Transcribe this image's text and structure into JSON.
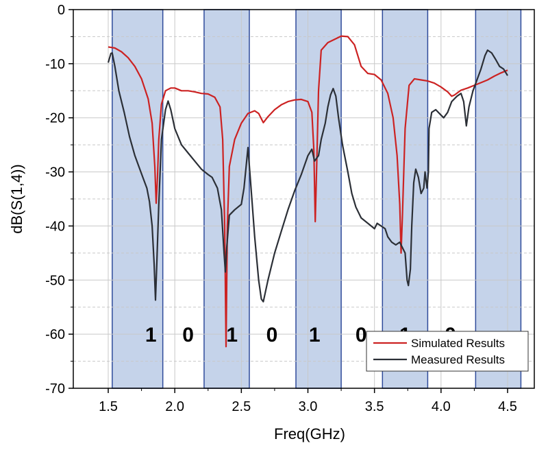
{
  "chart_data": {
    "type": "line",
    "xlabel": "Freq(GHz)",
    "ylabel": "dB(S(1,4))",
    "xlim": [
      1.5,
      4.5
    ],
    "ylim": [
      -70,
      0
    ],
    "x_ticks": [
      "1.5",
      "2.0",
      "2.5",
      "3.0",
      "3.5",
      "4.0",
      "4.5"
    ],
    "y_ticks": [
      "0",
      "-10",
      "-20",
      "-30",
      "-40",
      "-50",
      "-60",
      "-70"
    ],
    "grid": true,
    "legend_position": "bottom-right",
    "highlight_bands": [
      [
        1.53,
        1.91
      ],
      [
        2.22,
        2.56
      ],
      [
        2.91,
        3.25
      ],
      [
        3.56,
        3.9
      ],
      [
        4.26,
        4.6
      ]
    ],
    "bit_labels": [
      {
        "text": "1",
        "x": 1.82,
        "y": -60
      },
      {
        "text": "0",
        "x": 2.1,
        "y": -60
      },
      {
        "text": "1",
        "x": 2.43,
        "y": -60
      },
      {
        "text": "0",
        "x": 2.73,
        "y": -60
      },
      {
        "text": "1",
        "x": 3.05,
        "y": -60
      },
      {
        "text": "0",
        "x": 3.4,
        "y": -60
      },
      {
        "text": "1",
        "x": 3.73,
        "y": -60
      },
      {
        "text": "0",
        "x": 4.07,
        "y": -60
      }
    ],
    "series": [
      {
        "name": "Simulated Results",
        "color": "#cc2222",
        "points": [
          [
            1.5,
            -6.9
          ],
          [
            1.55,
            -7.1
          ],
          [
            1.6,
            -7.8
          ],
          [
            1.65,
            -8.9
          ],
          [
            1.7,
            -10.5
          ],
          [
            1.75,
            -12.8
          ],
          [
            1.8,
            -16.5
          ],
          [
            1.83,
            -21
          ],
          [
            1.85,
            -29
          ],
          [
            1.86,
            -35.8
          ],
          [
            1.87,
            -31
          ],
          [
            1.88,
            -24
          ],
          [
            1.9,
            -17.5
          ],
          [
            1.93,
            -15
          ],
          [
            1.97,
            -14.5
          ],
          [
            2.0,
            -14.5
          ],
          [
            2.05,
            -15.0
          ],
          [
            2.1,
            -15.0
          ],
          [
            2.15,
            -15.2
          ],
          [
            2.2,
            -15.5
          ],
          [
            2.25,
            -15.6
          ],
          [
            2.3,
            -16.2
          ],
          [
            2.34,
            -18
          ],
          [
            2.36,
            -24
          ],
          [
            2.375,
            -40
          ],
          [
            2.385,
            -62.3
          ],
          [
            2.395,
            -40
          ],
          [
            2.41,
            -29
          ],
          [
            2.45,
            -24
          ],
          [
            2.5,
            -21
          ],
          [
            2.55,
            -19.2
          ],
          [
            2.6,
            -18.7
          ],
          [
            2.63,
            -19.2
          ],
          [
            2.665,
            -20.9
          ],
          [
            2.7,
            -19.8
          ],
          [
            2.75,
            -18.5
          ],
          [
            2.8,
            -17.6
          ],
          [
            2.85,
            -17
          ],
          [
            2.9,
            -16.7
          ],
          [
            2.95,
            -16.6
          ],
          [
            3.0,
            -17
          ],
          [
            3.03,
            -19
          ],
          [
            3.045,
            -26
          ],
          [
            3.055,
            -39.2
          ],
          [
            3.065,
            -30
          ],
          [
            3.08,
            -15
          ],
          [
            3.1,
            -7.5
          ],
          [
            3.15,
            -6.1
          ],
          [
            3.2,
            -5.5
          ],
          [
            3.25,
            -4.9
          ],
          [
            3.3,
            -5.0
          ],
          [
            3.35,
            -6.5
          ],
          [
            3.4,
            -10.5
          ],
          [
            3.45,
            -11.8
          ],
          [
            3.5,
            -12.0
          ],
          [
            3.55,
            -13
          ],
          [
            3.6,
            -15.5
          ],
          [
            3.64,
            -20
          ],
          [
            3.67,
            -27
          ],
          [
            3.69,
            -36
          ],
          [
            3.7,
            -45
          ],
          [
            3.71,
            -38
          ],
          [
            3.73,
            -22
          ],
          [
            3.76,
            -14
          ],
          [
            3.8,
            -12.8
          ],
          [
            3.85,
            -13.0
          ],
          [
            3.9,
            -13.2
          ],
          [
            3.95,
            -13.6
          ],
          [
            4.0,
            -14.3
          ],
          [
            4.05,
            -15.2
          ],
          [
            4.08,
            -16.0
          ],
          [
            4.1,
            -15.8
          ],
          [
            4.15,
            -14.9
          ],
          [
            4.2,
            -14.5
          ],
          [
            4.25,
            -14
          ],
          [
            4.3,
            -13.5
          ],
          [
            4.35,
            -13
          ],
          [
            4.4,
            -12.3
          ],
          [
            4.45,
            -11.7
          ],
          [
            4.5,
            -11.2
          ]
        ]
      },
      {
        "name": "Measured Results",
        "color": "#2b2f36",
        "points": [
          [
            1.5,
            -9.8
          ],
          [
            1.52,
            -8.1
          ],
          [
            1.53,
            -8.0
          ],
          [
            1.55,
            -10.5
          ],
          [
            1.58,
            -15
          ],
          [
            1.62,
            -19
          ],
          [
            1.66,
            -23.5
          ],
          [
            1.7,
            -27
          ],
          [
            1.73,
            -29
          ],
          [
            1.76,
            -31
          ],
          [
            1.79,
            -33
          ],
          [
            1.81,
            -35.5
          ],
          [
            1.83,
            -40
          ],
          [
            1.845,
            -47
          ],
          [
            1.855,
            -53.7
          ],
          [
            1.865,
            -47
          ],
          [
            1.88,
            -36
          ],
          [
            1.9,
            -24
          ],
          [
            1.93,
            -18.5
          ],
          [
            1.95,
            -16.9
          ],
          [
            1.97,
            -18.5
          ],
          [
            2.0,
            -22
          ],
          [
            2.05,
            -25
          ],
          [
            2.1,
            -26.5
          ],
          [
            2.15,
            -28
          ],
          [
            2.2,
            -29.5
          ],
          [
            2.25,
            -30.5
          ],
          [
            2.28,
            -31
          ],
          [
            2.32,
            -33
          ],
          [
            2.35,
            -37
          ],
          [
            2.37,
            -45
          ],
          [
            2.38,
            -48.5
          ],
          [
            2.39,
            -44
          ],
          [
            2.41,
            -38
          ],
          [
            2.45,
            -37
          ],
          [
            2.5,
            -36
          ],
          [
            2.52,
            -33
          ],
          [
            2.55,
            -25.5
          ],
          [
            2.57,
            -32
          ],
          [
            2.6,
            -42
          ],
          [
            2.63,
            -50
          ],
          [
            2.65,
            -53.5
          ],
          [
            2.665,
            -54
          ],
          [
            2.7,
            -50
          ],
          [
            2.75,
            -45
          ],
          [
            2.8,
            -41
          ],
          [
            2.85,
            -37
          ],
          [
            2.9,
            -33.5
          ],
          [
            2.95,
            -30.5
          ],
          [
            3.0,
            -27
          ],
          [
            3.03,
            -25.8
          ],
          [
            3.05,
            -28
          ],
          [
            3.08,
            -27
          ],
          [
            3.1,
            -24
          ],
          [
            3.13,
            -21
          ],
          [
            3.15,
            -18
          ],
          [
            3.17,
            -15.8
          ],
          [
            3.19,
            -14.6
          ],
          [
            3.21,
            -16
          ],
          [
            3.23,
            -20
          ],
          [
            3.26,
            -25
          ],
          [
            3.3,
            -30
          ],
          [
            3.33,
            -34
          ],
          [
            3.36,
            -36.5
          ],
          [
            3.4,
            -38.5
          ],
          [
            3.45,
            -39.5
          ],
          [
            3.5,
            -40.5
          ],
          [
            3.52,
            -39.5
          ],
          [
            3.55,
            -40
          ],
          [
            3.58,
            -40.5
          ],
          [
            3.6,
            -42
          ],
          [
            3.63,
            -43
          ],
          [
            3.66,
            -43.5
          ],
          [
            3.69,
            -43
          ],
          [
            3.71,
            -44
          ],
          [
            3.73,
            -45
          ],
          [
            3.745,
            -50
          ],
          [
            3.755,
            -51
          ],
          [
            3.77,
            -48
          ],
          [
            3.78,
            -40
          ],
          [
            3.795,
            -32
          ],
          [
            3.81,
            -29.5
          ],
          [
            3.83,
            -31
          ],
          [
            3.85,
            -34
          ],
          [
            3.87,
            -33
          ],
          [
            3.88,
            -30
          ],
          [
            3.895,
            -33
          ],
          [
            3.905,
            -30
          ],
          [
            3.91,
            -22
          ],
          [
            3.93,
            -19
          ],
          [
            3.96,
            -18.5
          ],
          [
            4.0,
            -19.5
          ],
          [
            4.02,
            -20
          ],
          [
            4.05,
            -19
          ],
          [
            4.08,
            -17
          ],
          [
            4.1,
            -16.5
          ],
          [
            4.12,
            -16
          ],
          [
            4.15,
            -15.5
          ],
          [
            4.17,
            -17
          ],
          [
            4.19,
            -21.5
          ],
          [
            4.21,
            -18
          ],
          [
            4.24,
            -15
          ],
          [
            4.27,
            -13
          ],
          [
            4.3,
            -11
          ],
          [
            4.33,
            -8.5
          ],
          [
            4.35,
            -7.5
          ],
          [
            4.38,
            -8
          ],
          [
            4.41,
            -9.2
          ],
          [
            4.44,
            -10.5
          ],
          [
            4.47,
            -11
          ],
          [
            4.5,
            -12.2
          ]
        ]
      }
    ]
  }
}
